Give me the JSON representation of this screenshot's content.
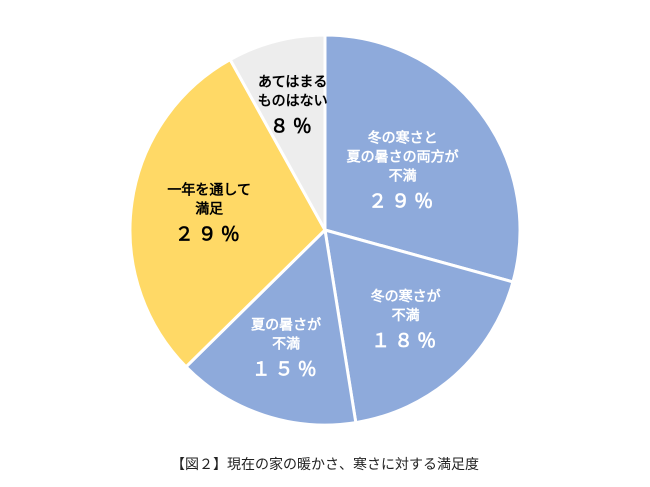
{
  "chart_data": {
    "type": "pie",
    "title": "",
    "slices": [
      {
        "label_lines": [
          "冬の寒さと",
          "夏の暑さの両方が",
          "不満"
        ],
        "value_text": "２９％",
        "value": 29,
        "color": "#8eaadb",
        "text_color": "#ffffff"
      },
      {
        "label_lines": [
          "冬の寒さが",
          "不満"
        ],
        "value_text": "１８％",
        "value": 18,
        "color": "#8eaadb",
        "text_color": "#ffffff"
      },
      {
        "label_lines": [
          "夏の暑さが",
          "不満"
        ],
        "value_text": "１５％",
        "value": 15,
        "color": "#8eaadb",
        "text_color": "#ffffff"
      },
      {
        "label_lines": [
          "一年を通して",
          "満足"
        ],
        "value_text": "２９％",
        "value": 29,
        "color": "#ffd966",
        "text_color": "#000000"
      },
      {
        "label_lines": [
          "あてはまる",
          "ものはない"
        ],
        "value_text": "８％",
        "value": 8,
        "color": "#ededed",
        "text_color": "#000000"
      }
    ],
    "slice_border_color": "#ffffff",
    "legend": "none"
  },
  "caption": "【図２】現在の家の暖かさ、寒さに対する満足度"
}
